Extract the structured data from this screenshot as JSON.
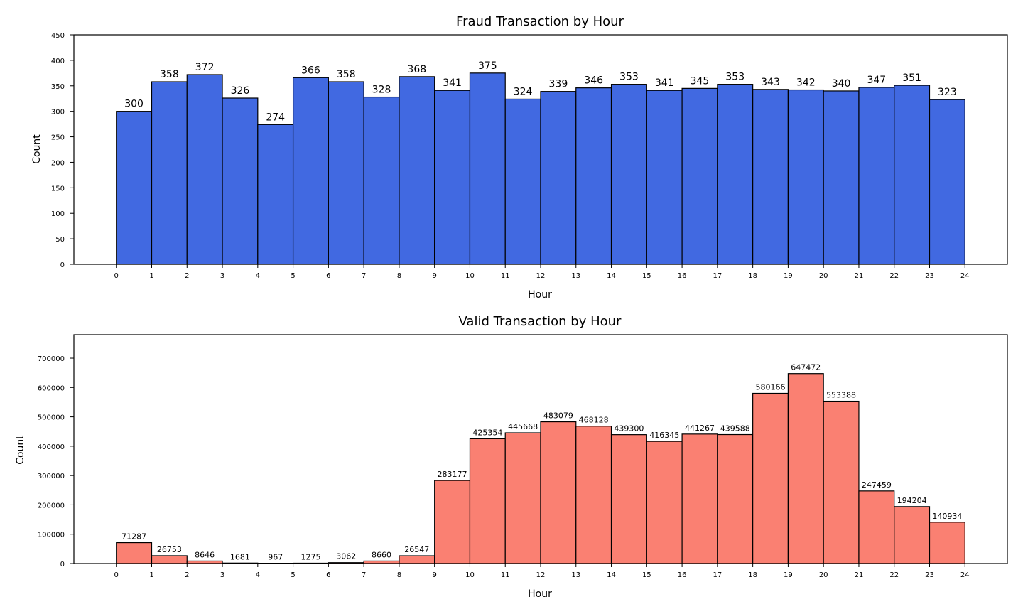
{
  "chart_data": [
    {
      "type": "bar",
      "title": "Fraud Transaction by Hour",
      "xlabel": "Hour",
      "ylabel": "Count",
      "xlim": [
        -1.2,
        25.2
      ],
      "ylim": [
        0,
        450
      ],
      "xticks": [
        0,
        1,
        2,
        3,
        4,
        5,
        6,
        7,
        8,
        9,
        10,
        11,
        12,
        13,
        14,
        15,
        16,
        17,
        18,
        19,
        20,
        21,
        22,
        23,
        24
      ],
      "yticks": [
        0,
        50,
        100,
        150,
        200,
        250,
        300,
        350,
        400,
        450
      ],
      "bin_edges": [
        0,
        1,
        2,
        3,
        4,
        5,
        6,
        7,
        8,
        9,
        10,
        11,
        12,
        13,
        14,
        15,
        16,
        17,
        18,
        19,
        20,
        21,
        22,
        23,
        24
      ],
      "values": [
        300,
        358,
        372,
        326,
        274,
        366,
        358,
        328,
        368,
        341,
        375,
        324,
        339,
        346,
        353,
        341,
        345,
        353,
        343,
        342,
        340,
        347,
        351,
        323
      ],
      "data_labels": [
        "300",
        "358",
        "372",
        "326",
        "274",
        "366",
        "358",
        "328",
        "368",
        "341",
        "375",
        "324",
        "339",
        "346",
        "353",
        "341",
        "345",
        "353",
        "343",
        "342",
        "340",
        "347",
        "351",
        "323"
      ],
      "color": "#4169E1",
      "edgecolor": "#000000",
      "grid": false
    },
    {
      "type": "bar",
      "title": "Valid Transaction by Hour",
      "xlabel": "Hour",
      "ylabel": "Count",
      "xlim": [
        -1.2,
        25.2
      ],
      "ylim": [
        0,
        700000
      ],
      "xticks": [
        0,
        1,
        2,
        3,
        4,
        5,
        6,
        7,
        8,
        9,
        10,
        11,
        12,
        13,
        14,
        15,
        16,
        17,
        18,
        19,
        20,
        21,
        22,
        23,
        24
      ],
      "yticks": [
        0,
        100000,
        200000,
        300000,
        400000,
        500000,
        600000,
        700000
      ],
      "bin_edges": [
        0,
        1,
        2,
        3,
        4,
        5,
        6,
        7,
        8,
        9,
        10,
        11,
        12,
        13,
        14,
        15,
        16,
        17,
        18,
        19,
        20,
        21,
        22,
        23,
        24
      ],
      "values": [
        71287,
        26753,
        8646,
        1681,
        967,
        1275,
        3062,
        8660,
        26547,
        283177,
        425354,
        445668,
        483079,
        468128,
        439300,
        416345,
        441267,
        439588,
        580166,
        647472,
        553388,
        247459,
        194204,
        140934
      ],
      "data_labels": [
        "71287",
        "26753",
        "8646",
        "1681",
        "967",
        "1275",
        "3062",
        "8660",
        "26547",
        "283177",
        "425354",
        "445668",
        "483079",
        "468128",
        "439300",
        "416345",
        "441267",
        "439588",
        "580166",
        "647472",
        "553388",
        "247459",
        "194204",
        "140934"
      ],
      "color": "#FA8072",
      "edgecolor": "#000000",
      "grid": false
    }
  ]
}
